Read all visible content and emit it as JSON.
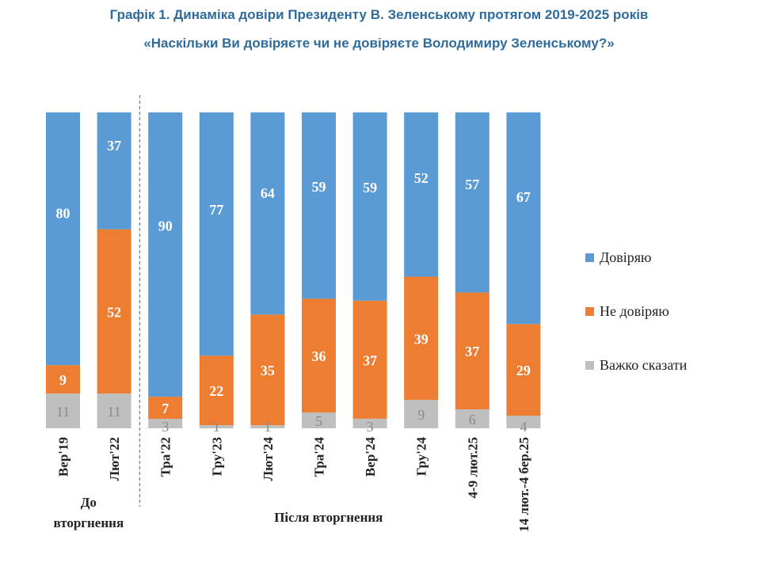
{
  "title": "Графік 1. Динаміка довіри Президенту В. Зеленському протягом 2019-2025 років",
  "subtitle": "«Наскільки Ви довіряєте чи не довіряєте Володимиру Зеленському?»",
  "chart_data": {
    "type": "bar",
    "stacked": true,
    "categories": [
      "Вер'19",
      "Лют'22",
      "Тра'22",
      "Гру'23",
      "Лют'24",
      "Тра'24",
      "Вер'24",
      "Гру'24",
      "4-9 лют.25",
      "14 лют.-4 бер.25"
    ],
    "series": [
      {
        "name": "Важко сказати",
        "color": "#bfbfbf",
        "values": [
          11,
          11,
          3,
          1,
          1,
          5,
          3,
          9,
          6,
          4
        ]
      },
      {
        "name": "Не довіряю",
        "color": "#ed7d31",
        "values": [
          9,
          52,
          7,
          22,
          35,
          36,
          37,
          39,
          37,
          29
        ]
      },
      {
        "name": "Довіряю",
        "color": "#5b9bd5",
        "values": [
          80,
          37,
          90,
          77,
          64,
          59,
          59,
          52,
          57,
          67
        ]
      }
    ],
    "groups": [
      {
        "label_line1": "До",
        "label_line2": "вторгнення",
        "categories": [
          0,
          1
        ]
      },
      {
        "label_line1": "Після вторгнення",
        "label_line2": "",
        "categories": [
          2,
          3,
          4,
          5,
          6,
          7,
          8,
          9
        ]
      }
    ],
    "legend": [
      "Довіряю",
      "Не довіряю",
      "Важко сказати"
    ],
    "legend_position": "right",
    "ylim": [
      0,
      100
    ],
    "grid": false
  }
}
